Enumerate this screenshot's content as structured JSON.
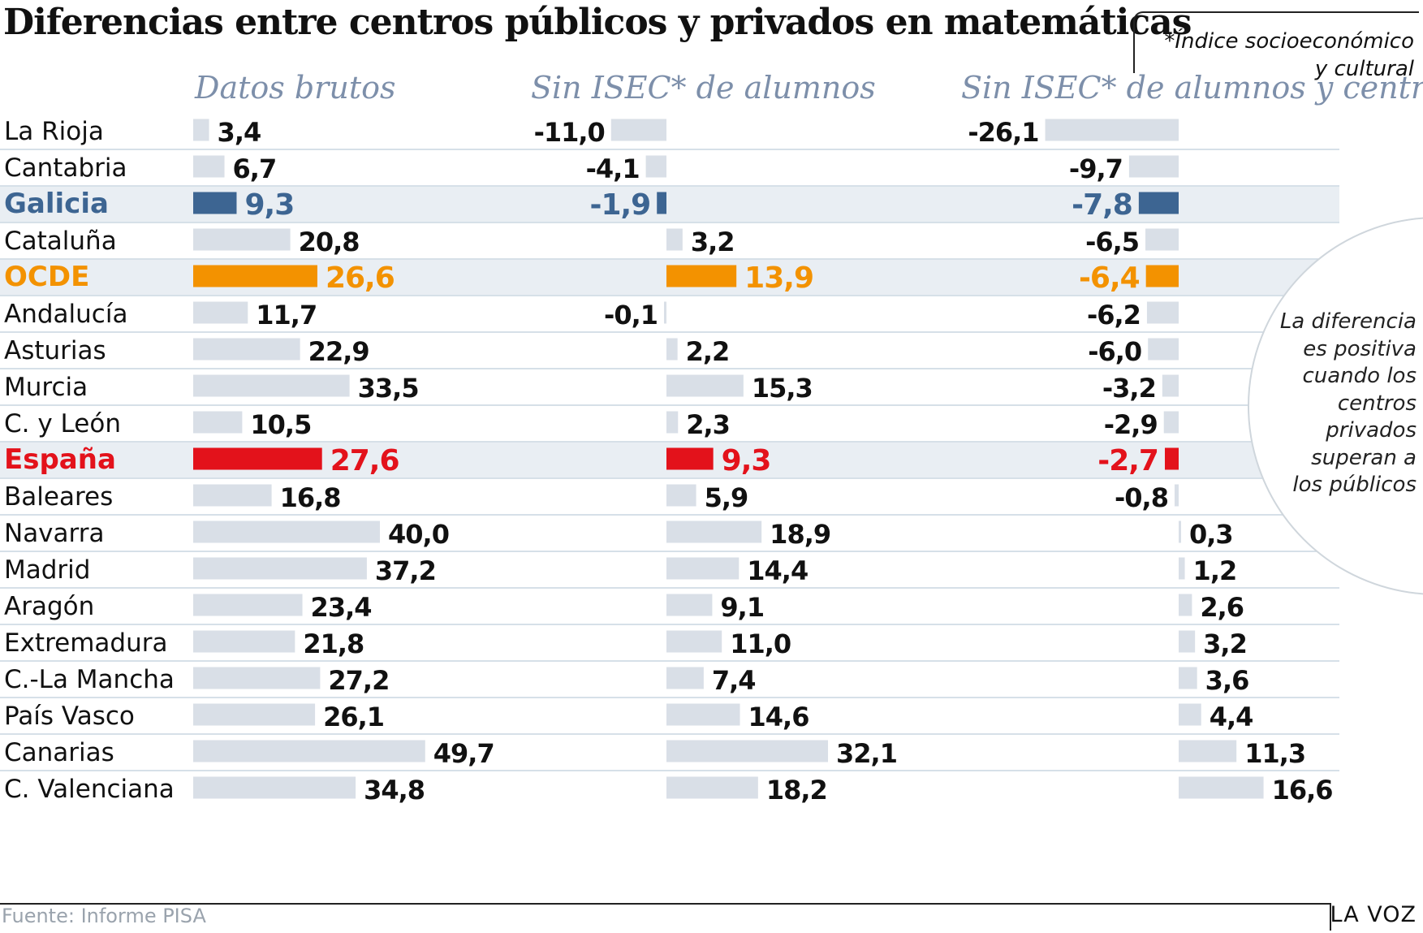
{
  "header": {
    "title": "Diferencias entre centros públicos y privados en matemáticas",
    "note_line1": "*Índice socioeconómico",
    "note_line2": "y cultural"
  },
  "columns": [
    {
      "label": "Datos brutos"
    },
    {
      "label": "Sin ISEC* de alumnos"
    },
    {
      "label": "Sin ISEC* de alumnos y centro"
    }
  ],
  "annotation": {
    "lines": [
      "La diferencia",
      "es positiva",
      "cuando los",
      "centros",
      "privados",
      "superan a",
      "los públicos"
    ]
  },
  "footer": {
    "source": "Fuente: Informe PISA",
    "brand": "LA VOZ"
  },
  "colors": {
    "default_bar": "#d9dfe7",
    "galicia": "#3d6592",
    "ocde": "#f39200",
    "espana": "#e3121b",
    "highlight_band": "#e9eef3",
    "divider": "#c9d6e0",
    "column_heading": "#7d8faa"
  },
  "chart_data": {
    "type": "bar",
    "orientation": "horizontal",
    "title": "Diferencias entre centros públicos y privados en matemáticas",
    "series": [
      {
        "name": "Datos brutos",
        "values": [
          3.4,
          6.7,
          9.3,
          20.8,
          26.6,
          11.7,
          22.9,
          33.5,
          10.5,
          27.6,
          16.8,
          40.0,
          37.2,
          23.4,
          21.8,
          27.2,
          26.1,
          49.7,
          34.8
        ],
        "labels": [
          "3,4",
          "6,7",
          "9,3",
          "20,8",
          "26,6",
          "11,7",
          "22,9",
          "33,5",
          "10,5",
          "27,6",
          "16,8",
          "40,0",
          "37,2",
          "23,4",
          "21,8",
          "27,2",
          "26,1",
          "49,7",
          "34,8"
        ]
      },
      {
        "name": "Sin ISEC* de alumnos",
        "values": [
          -11.0,
          -4.1,
          -1.9,
          3.2,
          13.9,
          -0.1,
          2.2,
          15.3,
          2.3,
          9.3,
          5.9,
          18.9,
          14.4,
          9.1,
          11.0,
          7.4,
          14.6,
          32.1,
          18.2
        ],
        "labels": [
          "-11,0",
          "-4,1",
          "-1,9",
          "3,2",
          "13,9",
          "-0,1",
          "2,2",
          "15,3",
          "2,3",
          "9,3",
          "5,9",
          "18,9",
          "14,4",
          "9,1",
          "11,0",
          "7,4",
          "14,6",
          "32,1",
          "18,2"
        ]
      },
      {
        "name": "Sin ISEC* de alumnos y centro",
        "values": [
          -26.1,
          -9.7,
          -7.8,
          -6.5,
          -6.4,
          -6.2,
          -6.0,
          -3.2,
          -2.9,
          -2.7,
          -0.8,
          0.3,
          1.2,
          2.6,
          3.2,
          3.6,
          4.4,
          11.3,
          16.6
        ],
        "labels": [
          "-26,1",
          "-9,7",
          "-7,8",
          "-6,5",
          "-6,4",
          "-6,2",
          "-6,0",
          "-3,2",
          "-2,9",
          "-2,7",
          "-0,8",
          "0,3",
          "1,2",
          "2,6",
          "3,2",
          "3,6",
          "4,4",
          "11,3",
          "16,6"
        ]
      }
    ],
    "categories": [
      "La Rioja",
      "Cantabria",
      "Galicia",
      "Cataluña",
      "OCDE",
      "Andalucía",
      "Asturias",
      "Murcia",
      "C. y León",
      "España",
      "Baleares",
      "Navarra",
      "Madrid",
      "Aragón",
      "Extremadura",
      "C.-La Mancha",
      "País Vasco",
      "Canarias",
      "C. Valenciana"
    ],
    "highlights": {
      "Galicia": "galicia",
      "OCDE": "ocde",
      "España": "espana"
    },
    "grid": false,
    "legend": "none"
  }
}
